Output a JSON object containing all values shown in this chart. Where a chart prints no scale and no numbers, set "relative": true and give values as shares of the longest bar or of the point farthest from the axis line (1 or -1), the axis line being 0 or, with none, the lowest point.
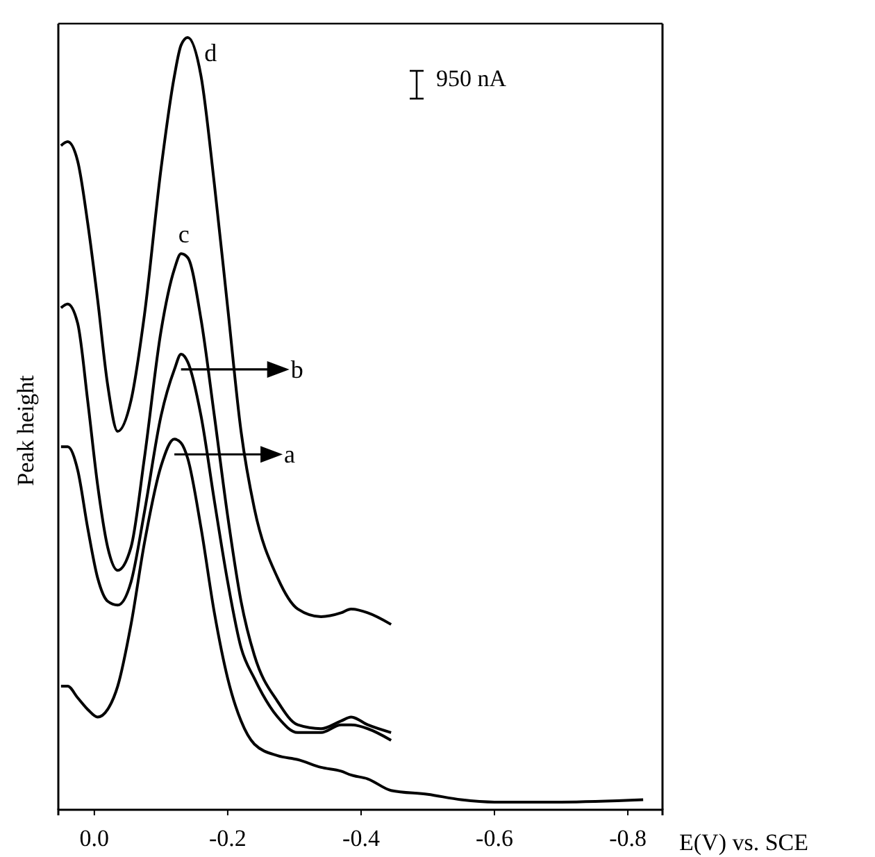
{
  "chart_data": {
    "type": "line",
    "relative": true,
    "xlabel": "E(V) vs. SCE",
    "ylabel": "Peak height",
    "xlim": [
      0.054,
      -0.852
    ],
    "xticks": [
      {
        "value": 0,
        "label": "0.0"
      },
      -0.2,
      -0.4,
      -0.6,
      -0.8
    ],
    "grid": false,
    "marker": "none",
    "line_style": "solid",
    "annotations": [
      "950 nA",
      "a",
      "b",
      {
        "text": "c",
        "x": -0.13,
        "y": 0.72
      },
      {
        "text": "d",
        "x": -0.14,
        "y": 1
      }
    ],
    "series": [
      {
        "color": "#000000",
        "x": [
          0.05,
          0.04,
          0.025,
          0.01,
          -0.005,
          -0.02,
          -0.035,
          -0.055,
          -0.075,
          -0.1,
          -0.12,
          -0.13,
          -0.14,
          -0.16,
          -0.18,
          -0.2,
          -0.22,
          -0.24,
          -0.275,
          -0.305,
          -0.34,
          -0.37,
          -0.385,
          -0.41,
          -0.445,
          -0.5,
          -0.55,
          -0.6,
          -0.7,
          -0.823
        ],
        "values": [
          0.16,
          0.16,
          0.145,
          0.13,
          0.12,
          0.13,
          0.16,
          0.24,
          0.345,
          0.445,
          0.48,
          0.475,
          0.455,
          0.365,
          0.255,
          0.17,
          0.115,
          0.085,
          0.07,
          0.065,
          0.055,
          0.05,
          0.045,
          0.04,
          0.025,
          0.02,
          0.013,
          0.01,
          0.01,
          0.013
        ]
      },
      {
        "color": "#000000",
        "x": [
          0.05,
          0.04,
          0.025,
          0.01,
          -0.005,
          -0.02,
          -0.035,
          -0.055,
          -0.075,
          -0.1,
          -0.12,
          -0.13,
          -0.14,
          -0.16,
          -0.18,
          -0.2,
          -0.22,
          -0.24,
          -0.275,
          -0.305,
          -0.34,
          -0.37,
          -0.385,
          -0.41,
          -0.445
        ],
        "values": [
          0.47,
          0.47,
          0.44,
          0.365,
          0.3,
          0.27,
          0.265,
          0.295,
          0.385,
          0.51,
          0.57,
          0.59,
          0.58,
          0.51,
          0.4,
          0.295,
          0.21,
          0.17,
          0.12,
          0.1,
          0.1,
          0.11,
          0.11,
          0.105,
          0.09
        ]
      },
      {
        "color": "#000000",
        "x": [
          0.05,
          0.04,
          0.025,
          0.01,
          -0.005,
          -0.02,
          -0.035,
          -0.055,
          -0.075,
          -0.1,
          -0.12,
          -0.13,
          -0.14,
          -0.16,
          -0.18,
          -0.2,
          -0.22,
          -0.24,
          -0.275,
          -0.305,
          -0.34,
          -0.37,
          -0.385,
          -0.41,
          -0.445
        ],
        "values": [
          0.65,
          0.655,
          0.63,
          0.53,
          0.42,
          0.34,
          0.31,
          0.34,
          0.455,
          0.62,
          0.7,
          0.72,
          0.715,
          0.635,
          0.51,
          0.38,
          0.27,
          0.2,
          0.14,
          0.11,
          0.105,
          0.115,
          0.12,
          0.11,
          0.1
        ]
      },
      {
        "color": "#000000",
        "x": [
          0.05,
          0.04,
          0.025,
          0.01,
          -0.005,
          -0.02,
          -0.035,
          -0.055,
          -0.075,
          -0.1,
          -0.12,
          -0.13,
          -0.14,
          -0.16,
          -0.18,
          -0.2,
          -0.22,
          -0.24,
          -0.275,
          -0.305,
          -0.34,
          -0.37,
          -0.385,
          -0.41,
          -0.445
        ],
        "values": [
          0.86,
          0.865,
          0.84,
          0.76,
          0.66,
          0.55,
          0.49,
          0.53,
          0.64,
          0.83,
          0.95,
          0.99,
          1,
          0.95,
          0.81,
          0.65,
          0.49,
          0.39,
          0.3,
          0.26,
          0.25,
          0.255,
          0.26,
          0.255,
          0.24
        ]
      }
    ]
  }
}
